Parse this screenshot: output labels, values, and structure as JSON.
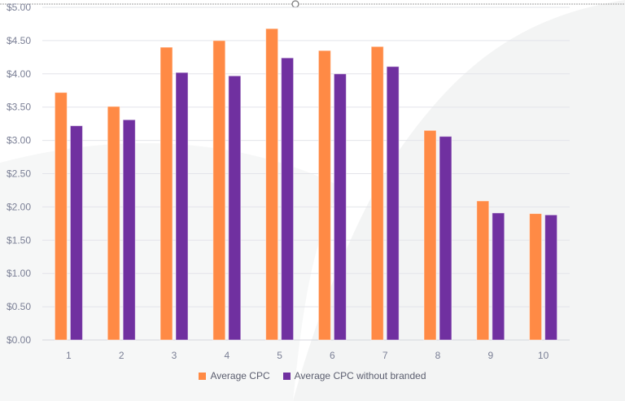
{
  "chart_data": {
    "type": "bar",
    "title": "",
    "xlabel": "",
    "ylabel": "",
    "categories": [
      "1",
      "2",
      "3",
      "4",
      "5",
      "6",
      "7",
      "8",
      "9",
      "10"
    ],
    "series": [
      {
        "name": "Average CPC",
        "color": "#ff8a45",
        "values": [
          3.72,
          3.51,
          4.4,
          4.5,
          4.68,
          4.35,
          4.41,
          3.15,
          2.09,
          1.9
        ]
      },
      {
        "name": "Average CPC without branded",
        "color": "#7030a0",
        "values": [
          3.22,
          3.31,
          4.02,
          3.97,
          4.24,
          4.0,
          4.11,
          3.06,
          1.91,
          1.88
        ]
      }
    ],
    "ylim": [
      0,
      5
    ],
    "yticks": [
      "$0.00",
      "$0.50",
      "$1.00",
      "$1.50",
      "$2.00",
      "$2.50",
      "$3.00",
      "$3.50",
      "$4.00",
      "$4.50",
      "$5.00"
    ],
    "grid": true,
    "legend_position": "bottom"
  }
}
